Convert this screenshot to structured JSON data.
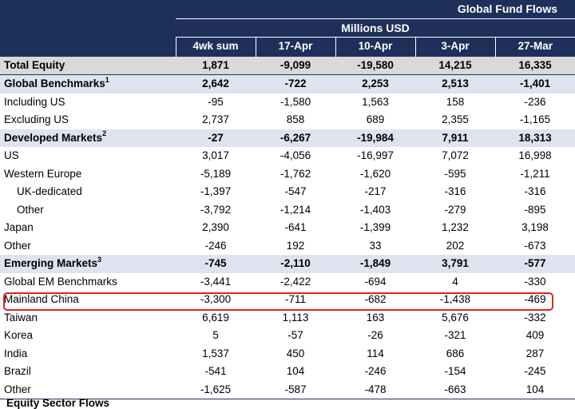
{
  "header": {
    "title": "Global Fund Flows",
    "subtitle": "Millions USD",
    "columns": [
      "4wk sum",
      "17-Apr",
      "10-Apr",
      "3-Apr",
      "27-Mar"
    ]
  },
  "rows": [
    {
      "label": "Total Equity",
      "sup": "",
      "values": [
        "1,871",
        "-9,099",
        "-19,580",
        "14,215",
        "16,335"
      ]
    },
    {
      "label": "Global Benchmarks",
      "sup": "1",
      "values": [
        "2,642",
        "-722",
        "2,253",
        "2,513",
        "-1,401"
      ]
    },
    {
      "label": "Including US",
      "sup": "",
      "values": [
        "-95",
        "-1,580",
        "1,563",
        "158",
        "-236"
      ]
    },
    {
      "label": "Excluding US",
      "sup": "",
      "values": [
        "2,737",
        "858",
        "689",
        "2,355",
        "-1,165"
      ]
    },
    {
      "label": "Developed Markets",
      "sup": "2",
      "values": [
        "-27",
        "-6,267",
        "-19,984",
        "7,911",
        "18,313"
      ]
    },
    {
      "label": "US",
      "sup": "",
      "values": [
        "3,017",
        "-4,056",
        "-16,997",
        "7,072",
        "16,998"
      ]
    },
    {
      "label": "Western Europe",
      "sup": "",
      "values": [
        "-5,189",
        "-1,762",
        "-1,620",
        "-595",
        "-1,211"
      ]
    },
    {
      "label": "UK-dedicated",
      "sup": "",
      "values": [
        "-1,397",
        "-547",
        "-217",
        "-316",
        "-316"
      ]
    },
    {
      "label": "Other",
      "sup": "",
      "values": [
        "-3,792",
        "-1,214",
        "-1,403",
        "-279",
        "-895"
      ]
    },
    {
      "label": "Japan",
      "sup": "",
      "values": [
        "2,390",
        "-641",
        "-1,399",
        "1,232",
        "3,198"
      ]
    },
    {
      "label": "Other",
      "sup": "",
      "values": [
        "-246",
        "192",
        "33",
        "202",
        "-673"
      ]
    },
    {
      "label": "Emerging Markets",
      "sup": "3",
      "values": [
        "-745",
        "-2,110",
        "-1,849",
        "3,791",
        "-577"
      ]
    },
    {
      "label": "Global EM Benchmarks",
      "sup": "",
      "values": [
        "-3,441",
        "-2,422",
        "-694",
        "4",
        "-330"
      ]
    },
    {
      "label": "Mainland China",
      "sup": "",
      "values": [
        "-3,300",
        "-711",
        "-682",
        "-1,438",
        "-469"
      ]
    },
    {
      "label": "Taiwan",
      "sup": "",
      "values": [
        "6,619",
        "1,113",
        "163",
        "5,676",
        "-332"
      ]
    },
    {
      "label": "Korea",
      "sup": "",
      "values": [
        "5",
        "-57",
        "-26",
        "-321",
        "409"
      ]
    },
    {
      "label": "India",
      "sup": "",
      "values": [
        "1,537",
        "450",
        "114",
        "686",
        "287"
      ]
    },
    {
      "label": "Brazil",
      "sup": "",
      "values": [
        "-541",
        "104",
        "-246",
        "-154",
        "-245"
      ]
    },
    {
      "label": "Other",
      "sup": "",
      "values": [
        "-1,625",
        "-587",
        "-478",
        "-663",
        "104"
      ]
    }
  ],
  "footer_partial": "Equity Sector Flows",
  "colors": {
    "header_bg": "#1e2f5a",
    "total_bg": "#d9d9d9",
    "section_bg": "#dfe3ef",
    "highlight": "#e0241b"
  }
}
